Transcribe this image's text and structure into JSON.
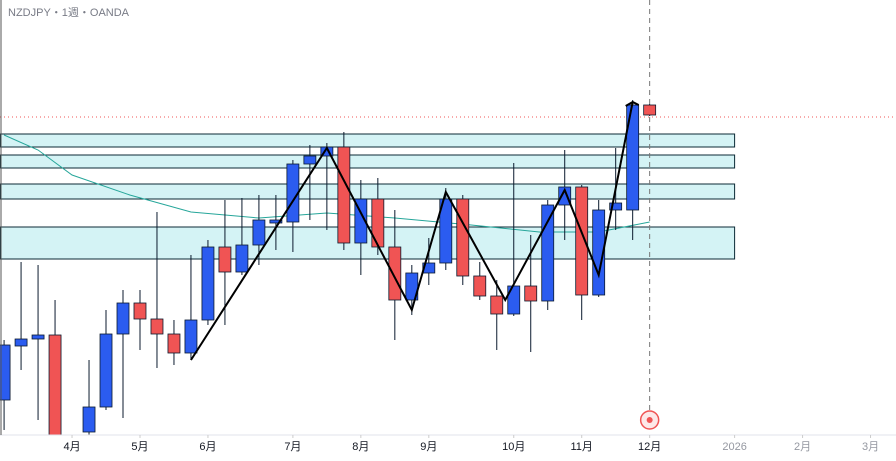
{
  "chart_data": {
    "type": "candlestick",
    "title": "NZDJPY・1週・OANDA",
    "x": [
      0,
      1,
      2,
      3,
      5,
      6,
      7,
      8,
      9,
      10,
      11,
      12,
      13,
      14,
      15,
      16,
      17,
      18,
      19,
      20,
      21,
      22,
      23,
      24,
      25,
      26,
      27,
      28,
      29,
      30,
      31,
      32,
      33,
      34,
      35,
      36,
      37,
      38
    ],
    "open": [
      83.1,
      84.18,
      84.32,
      84.4,
      82.46,
      82.96,
      84.42,
      85.04,
      84.72,
      84.42,
      84.04,
      84.7,
      86.16,
      85.66,
      86.2,
      86.64,
      86.66,
      87.82,
      87.98,
      88.16,
      86.24,
      87.12,
      86.16,
      85.1,
      85.64,
      85.84,
      87.12,
      85.58,
      85.18,
      84.82,
      85.38,
      85.08,
      87.0,
      87.36,
      85.2,
      86.9,
      86.9,
      89.0
    ],
    "high": [
      84.3,
      85.86,
      85.8,
      85.1,
      83.9,
      84.9,
      85.3,
      85.3,
      86.86,
      84.7,
      86.0,
      86.3,
      87.1,
      87.14,
      87.2,
      87.2,
      87.9,
      88.2,
      88.24,
      88.46,
      87.5,
      87.54,
      86.9,
      85.8,
      86.34,
      87.34,
      87.2,
      85.86,
      85.5,
      87.84,
      86.4,
      87.1,
      88.1,
      87.4,
      87.1,
      88.14,
      89.1,
      89.02
    ],
    "low": [
      82.5,
      83.7,
      82.7,
      82.3,
      82.4,
      82.9,
      82.74,
      84.1,
      83.74,
      83.8,
      83.9,
      84.6,
      84.6,
      85.6,
      85.8,
      86.1,
      86.06,
      86.7,
      86.5,
      86.1,
      85.6,
      86.0,
      84.3,
      84.8,
      85.4,
      85.7,
      85.4,
      85.1,
      84.1,
      84.78,
      84.06,
      84.9,
      86.3,
      84.7,
      85.16,
      86.5,
      86.3,
      88.78
    ],
    "close": [
      84.2,
      84.32,
      84.4,
      82.4,
      82.96,
      84.42,
      85.04,
      84.72,
      84.42,
      84.04,
      84.7,
      86.16,
      85.66,
      86.2,
      86.7,
      86.7,
      87.82,
      87.98,
      88.16,
      86.24,
      87.12,
      86.16,
      85.1,
      85.64,
      85.84,
      87.12,
      85.58,
      85.18,
      84.82,
      85.38,
      85.08,
      87.0,
      87.36,
      85.2,
      86.9,
      87.04,
      89.0,
      88.8
    ],
    "up_color": "#2b5cf0",
    "down_color": "#f05454",
    "ma": {
      "color": "#26a69a",
      "x": [
        0,
        2,
        4,
        7.4,
        11,
        15,
        19,
        23,
        27.5,
        31.5,
        35,
        38
      ],
      "values": [
        88.4,
        88.1,
        87.6,
        87.2,
        86.86,
        86.74,
        86.84,
        86.74,
        86.6,
        86.46,
        86.46,
        86.66
      ]
    },
    "zigzag": {
      "color": "#000000",
      "x": [
        11,
        19,
        24,
        26,
        29.5,
        33,
        35,
        37
      ],
      "values": [
        83.9,
        88.14,
        84.9,
        87.26,
        85.1,
        87.3,
        85.6,
        89.06
      ]
    },
    "zones": [
      [
        88.42,
        88.16
      ],
      [
        88.0,
        87.74
      ],
      [
        87.42,
        87.12
      ],
      [
        86.56,
        85.92
      ]
    ],
    "price_line": 88.76,
    "ylim": [
      82.4,
      91.1
    ],
    "xlim": [
      -0.24,
      52.5
    ],
    "xticks": [
      {
        "value": 4,
        "label": "4月"
      },
      {
        "value": 8,
        "label": "5月"
      },
      {
        "value": 12,
        "label": "6月"
      },
      {
        "value": 17,
        "label": "7月"
      },
      {
        "value": 21,
        "label": "8月"
      },
      {
        "value": 25,
        "label": "9月"
      },
      {
        "value": 30,
        "label": "10月"
      },
      {
        "value": 34,
        "label": "11月"
      },
      {
        "value": 38,
        "label": "12月"
      },
      {
        "value": 43,
        "label": "2026"
      },
      {
        "value": 47,
        "label": "2月"
      },
      {
        "value": 51,
        "label": "3月"
      }
    ]
  }
}
